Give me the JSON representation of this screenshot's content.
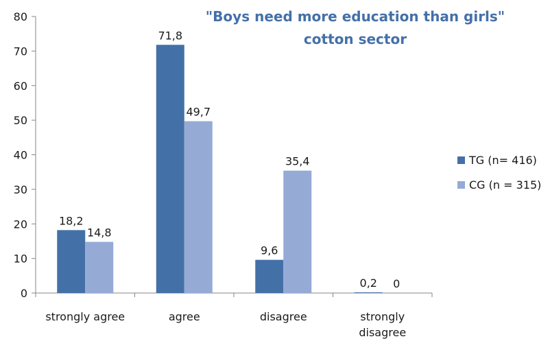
{
  "chart_data": {
    "type": "bar",
    "title": "\"Boys need more education than girls\"",
    "subtitle": "cotton sector",
    "xlabel": "",
    "ylabel": "",
    "categories": [
      "strongly agree",
      "agree",
      "disagree",
      "strongly disagree"
    ],
    "series": [
      {
        "name": "TG (n= 416)",
        "values": [
          18.2,
          71.8,
          9.6,
          0.2
        ],
        "labels": [
          "18,2",
          "71,8",
          "9,6",
          "0,2"
        ],
        "color": "#4470a8"
      },
      {
        "name": "CG (n = 315)",
        "values": [
          14.8,
          49.7,
          35.4,
          0
        ],
        "labels": [
          "14,8",
          "49,7",
          "35,4",
          "0"
        ],
        "color": "#95abd6"
      }
    ],
    "ylim": [
      0,
      80
    ],
    "yticks": [
      0,
      10,
      20,
      30,
      40,
      50,
      60,
      70,
      80
    ],
    "grid": false,
    "legend_position": "right",
    "title_color": "#4470a8"
  }
}
